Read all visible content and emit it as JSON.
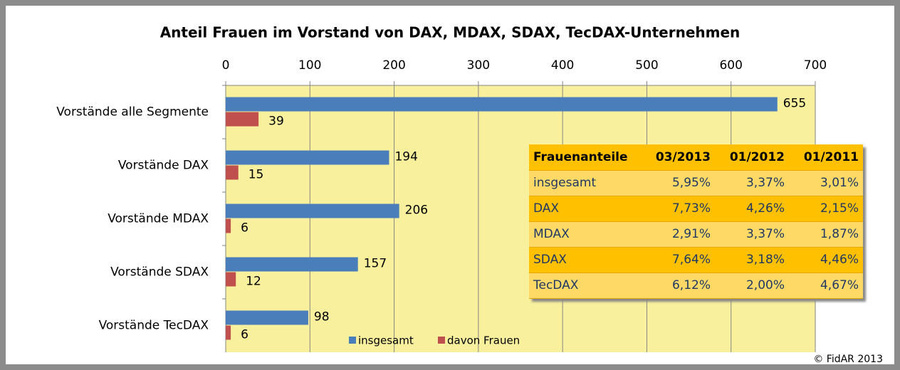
{
  "chart_data": {
    "type": "hbar",
    "title": "Anteil Frauen im Vorstand von DAX, MDAX, SDAX, TecDAX-Unternehmen",
    "categories": [
      "Vorstände alle Segmente",
      "Vorstände DAX",
      "Vorstände MDAX",
      "Vorstände SDAX",
      "Vorstände TecDAX"
    ],
    "series": [
      {
        "name": "insgesamt",
        "color": "#4a7ebb",
        "values": [
          655,
          194,
          206,
          157,
          98
        ]
      },
      {
        "name": "davon Frauen",
        "color": "#c0504d",
        "values": [
          39,
          15,
          6,
          12,
          6
        ]
      }
    ],
    "xlim": [
      0,
      700
    ],
    "xticks": [
      0,
      100,
      200,
      300,
      400,
      500,
      600,
      700
    ],
    "grid": true,
    "legend": "bottom"
  },
  "table": {
    "header": [
      "Frauenanteile",
      "03/2013",
      "01/2012",
      "01/2011"
    ],
    "rows": [
      [
        "insgesamt",
        "5,95%",
        "3,37%",
        "3,01%"
      ],
      [
        "DAX",
        "7,73%",
        "4,26%",
        "2,15%"
      ],
      [
        "MDAX",
        "2,91%",
        "3,37%",
        "1,87%"
      ],
      [
        "SDAX",
        "7,64%",
        "3,18%",
        "4,46%"
      ],
      [
        "TecDAX",
        "6,12%",
        "2,00%",
        "4,67%"
      ]
    ]
  },
  "copyright": "© FidAR 2013"
}
